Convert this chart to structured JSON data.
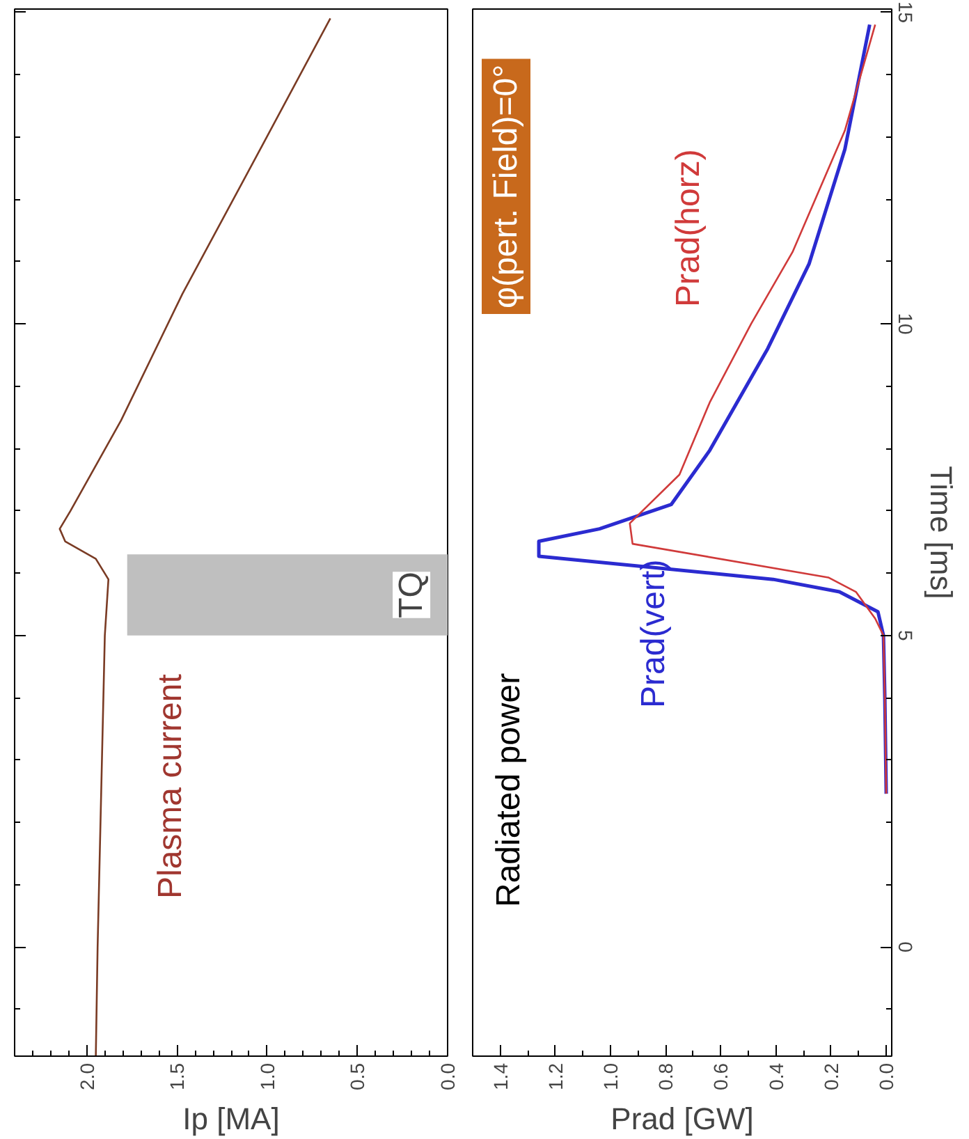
{
  "chart_data": [
    {
      "type": "line",
      "xlabel": "Ip [MA]",
      "xlim": [
        2.4,
        0
      ],
      "ylim": [
        -1.75,
        15.05
      ],
      "xticks": [
        {
          "value": 2,
          "label": "2.0"
        },
        1.5,
        {
          "value": 1,
          "label": "1.0"
        },
        0.5,
        {
          "value": 0,
          "label": "0.0"
        }
      ],
      "yticks": [
        0,
        5,
        10,
        15
      ],
      "tick_labels": "x",
      "grid": false,
      "series": [
        {
          "name": "Plasma current",
          "color": "#7a3b24",
          "x": [
            1.95,
            1.94,
            1.92,
            1.9,
            1.88,
            1.95,
            2.12,
            2.15,
            2.09,
            1.81,
            1.47,
            1.02,
            0.65
          ],
          "values": [
            -1.75,
            0,
            2.5,
            5,
            5.9,
            6.23,
            6.51,
            6.71,
            7.0,
            8.45,
            10.48,
            12.9,
            14.9
          ]
        }
      ],
      "bands": [
        {
          "axis": "y",
          "from": 5.0,
          "to": 6.3,
          "label": "TQ",
          "color": "#bfbfbf"
        }
      ]
    },
    {
      "type": "line",
      "xlabel": "Prad [GW]",
      "ylabel": "Time [ms]",
      "xlim": [
        1.5,
        -0.02
      ],
      "ylim": [
        -1.75,
        15.05
      ],
      "xticks": [
        {
          "value": 1.4,
          "label": "1.4"
        },
        {
          "value": 1.2,
          "label": "1.2"
        },
        {
          "value": 1,
          "label": "1.0"
        },
        {
          "value": 0.8,
          "label": "0.8"
        },
        {
          "value": 0.6,
          "label": "0.6"
        },
        {
          "value": 0.4,
          "label": "0.4"
        },
        {
          "value": 0.2,
          "label": "0.2"
        },
        {
          "value": 0,
          "label": "0.0"
        }
      ],
      "yticks": [
        0,
        5,
        10,
        15
      ],
      "grid": false,
      "series": [
        {
          "name": "Prad(vert)",
          "color": "#2b2bd0",
          "x": [
            0.0,
            0.005,
            0.01,
            0.03,
            0.17,
            0.41,
            1.26,
            1.26,
            1.04,
            0.78,
            0.64,
            0.43,
            0.28,
            0.15,
            0.06
          ],
          "values": [
            2.46,
            4.0,
            5.0,
            5.38,
            5.7,
            5.9,
            6.27,
            6.51,
            6.71,
            7.1,
            7.97,
            9.6,
            10.96,
            12.8,
            14.8
          ]
        },
        {
          "name": "Prad(horz)",
          "color": "#d03a3a",
          "x": [
            0.0,
            0.005,
            0.01,
            0.04,
            0.11,
            0.21,
            0.92,
            0.93,
            0.75,
            0.64,
            0.49,
            0.34,
            0.15,
            0.04
          ],
          "values": [
            2.46,
            4.0,
            5.0,
            5.27,
            5.7,
            5.93,
            6.47,
            6.8,
            7.58,
            8.74,
            10.0,
            11.15,
            13.1,
            14.8
          ]
        }
      ],
      "annotations": [
        "Radiated power",
        "φ(pert. Field)=0°"
      ]
    }
  ]
}
